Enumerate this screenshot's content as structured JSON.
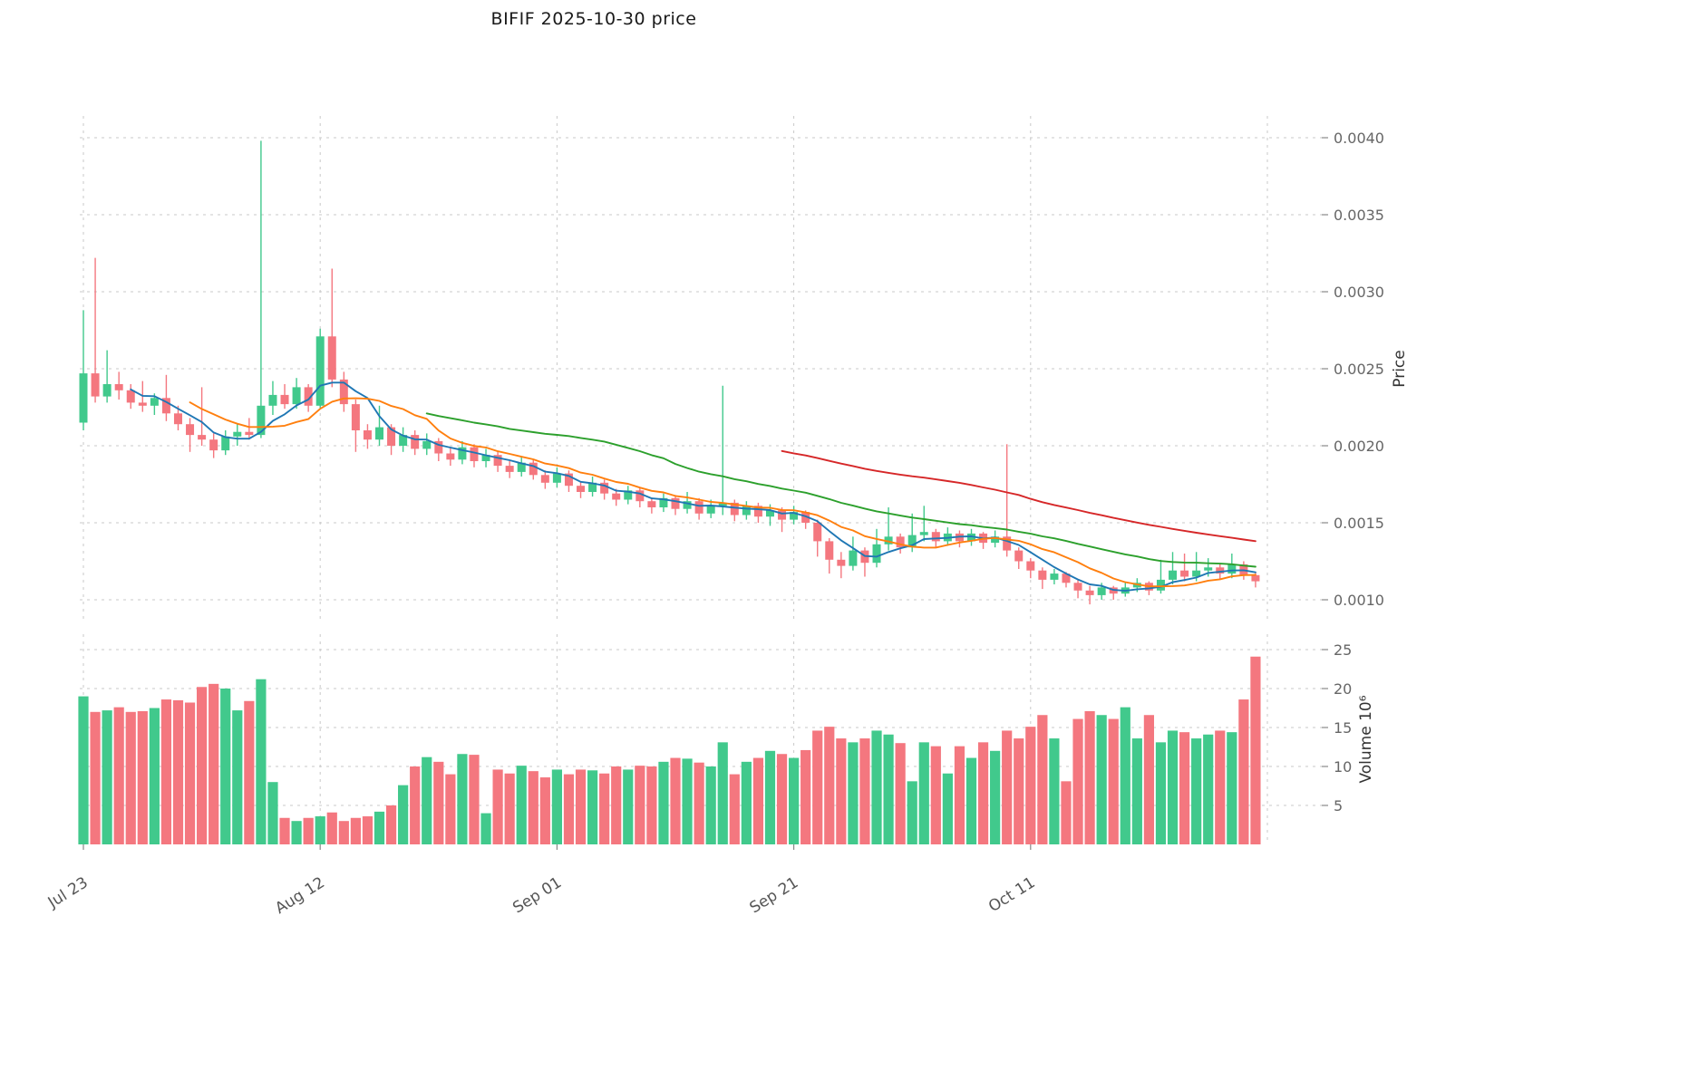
{
  "chart_data": {
    "type": "candlestick",
    "title": "BIFIF  2025-10-30  price",
    "start_date": "2025-07-23",
    "end_date": "2025-10-30",
    "price_axis": {
      "label": "Price",
      "ticks": [
        0.001,
        0.0015,
        0.002,
        0.0025,
        0.003,
        0.0035,
        0.004
      ]
    },
    "volume_axis": {
      "label": "Volume  10⁶",
      "ticks": [
        5,
        10,
        15,
        20,
        25
      ]
    },
    "x_tick_labels": [
      "Jul 23",
      "Aug 12",
      "Sep 01",
      "Sep 21",
      "Oct 11"
    ],
    "x_tick_indices": [
      0,
      20,
      40,
      60,
      80
    ],
    "x_grid_extra_indices": [
      100
    ],
    "grid": true,
    "legend": "none",
    "colors": {
      "up": "#41c98c",
      "down": "#f4777f",
      "grid": "#c9c9c9",
      "tick_text": "#666666",
      "axis_label_text": "#333333"
    },
    "moving_averages": [
      {
        "name": "MA5",
        "window": 5,
        "color": "#1f77b4"
      },
      {
        "name": "MA10",
        "window": 10,
        "color": "#ff7f0e"
      },
      {
        "name": "MA30",
        "window": 30,
        "color": "#2ca02c"
      },
      {
        "name": "MA60",
        "window": 60,
        "color": "#d62728"
      }
    ],
    "candles": {
      "open": [
        0.00215,
        0.00247,
        0.00232,
        0.0024,
        0.00236,
        0.00228,
        0.00226,
        0.00231,
        0.00221,
        0.00214,
        0.00207,
        0.00204,
        0.00197,
        0.00206,
        0.00209,
        0.00207,
        0.00226,
        0.00233,
        0.00227,
        0.00238,
        0.00226,
        0.00271,
        0.00243,
        0.00227,
        0.0021,
        0.00204,
        0.00212,
        0.002,
        0.00207,
        0.00198,
        0.00203,
        0.00195,
        0.00191,
        0.00199,
        0.0019,
        0.00194,
        0.00187,
        0.00183,
        0.00189,
        0.00181,
        0.00176,
        0.00182,
        0.00174,
        0.0017,
        0.00176,
        0.00169,
        0.00165,
        0.00171,
        0.00164,
        0.0016,
        0.00166,
        0.00159,
        0.00164,
        0.00156,
        0.00161,
        0.00163,
        0.00155,
        0.00161,
        0.00154,
        0.00158,
        0.00152,
        0.00157,
        0.0015,
        0.00138,
        0.00126,
        0.00122,
        0.00132,
        0.00124,
        0.00136,
        0.00141,
        0.00134,
        0.00142,
        0.00144,
        0.00138,
        0.00143,
        0.00138,
        0.00143,
        0.00137,
        0.00141,
        0.00132,
        0.00125,
        0.00119,
        0.00113,
        0.00117,
        0.00111,
        0.00106,
        0.00103,
        0.00108,
        0.00104,
        0.00108,
        0.00111,
        0.00106,
        0.00113,
        0.00119,
        0.00115,
        0.00119,
        0.00121,
        0.00117,
        0.00123,
        0.00116
      ],
      "high": [
        0.00288,
        0.00322,
        0.00262,
        0.00248,
        0.0024,
        0.00242,
        0.00234,
        0.00246,
        0.00226,
        0.00218,
        0.00238,
        0.00208,
        0.0021,
        0.00214,
        0.00218,
        0.00398,
        0.00242,
        0.0024,
        0.00244,
        0.0024,
        0.00276,
        0.00315,
        0.00248,
        0.0023,
        0.00214,
        0.00226,
        0.00214,
        0.00212,
        0.0021,
        0.00208,
        0.00205,
        0.00199,
        0.00203,
        0.00201,
        0.00198,
        0.00196,
        0.0019,
        0.00193,
        0.00191,
        0.00184,
        0.00186,
        0.00184,
        0.00177,
        0.0018,
        0.00178,
        0.00172,
        0.00174,
        0.00173,
        0.00166,
        0.00169,
        0.00168,
        0.0017,
        0.00166,
        0.00165,
        0.00239,
        0.00165,
        0.00164,
        0.00163,
        0.00162,
        0.0016,
        0.00161,
        0.00158,
        0.00152,
        0.0014,
        0.00131,
        0.00141,
        0.00134,
        0.00146,
        0.0016,
        0.00143,
        0.00156,
        0.00161,
        0.00146,
        0.00147,
        0.00145,
        0.00146,
        0.00144,
        0.00145,
        0.00201,
        0.00134,
        0.00127,
        0.00121,
        0.0012,
        0.00118,
        0.00113,
        0.00109,
        0.00111,
        0.00109,
        0.00111,
        0.00114,
        0.00112,
        0.00126,
        0.00131,
        0.0013,
        0.00131,
        0.00127,
        0.00123,
        0.0013,
        0.00125,
        0.00118
      ],
      "low": [
        0.0021,
        0.00228,
        0.00228,
        0.0023,
        0.00224,
        0.00222,
        0.0022,
        0.00216,
        0.0021,
        0.00196,
        0.002,
        0.00192,
        0.00194,
        0.002,
        0.00204,
        0.00205,
        0.0022,
        0.00224,
        0.00224,
        0.00222,
        0.00224,
        0.00238,
        0.00222,
        0.00196,
        0.00198,
        0.002,
        0.00194,
        0.00196,
        0.00194,
        0.00194,
        0.0019,
        0.00187,
        0.00188,
        0.00186,
        0.00186,
        0.00183,
        0.00179,
        0.0018,
        0.00178,
        0.00172,
        0.00173,
        0.0017,
        0.00166,
        0.00167,
        0.00165,
        0.00161,
        0.00162,
        0.0016,
        0.00156,
        0.00157,
        0.00155,
        0.00156,
        0.00152,
        0.00153,
        0.00155,
        0.00151,
        0.00152,
        0.0015,
        0.00148,
        0.00144,
        0.00149,
        0.00146,
        0.00128,
        0.00117,
        0.00114,
        0.00119,
        0.00115,
        0.00121,
        0.00132,
        0.0013,
        0.00131,
        0.00138,
        0.00134,
        0.00135,
        0.00134,
        0.00135,
        0.00133,
        0.00134,
        0.00128,
        0.0012,
        0.00114,
        0.00107,
        0.0011,
        0.00108,
        0.00101,
        0.00097,
        0.001,
        0.001,
        0.00102,
        0.00105,
        0.00103,
        0.00104,
        0.0011,
        0.00112,
        0.00112,
        0.00115,
        0.00113,
        0.00114,
        0.00113,
        0.00108
      ],
      "close": [
        0.00247,
        0.00232,
        0.0024,
        0.00236,
        0.00228,
        0.00226,
        0.00231,
        0.00221,
        0.00214,
        0.00207,
        0.00204,
        0.00197,
        0.00206,
        0.00209,
        0.00207,
        0.00226,
        0.00233,
        0.00227,
        0.00238,
        0.00226,
        0.00271,
        0.00243,
        0.00227,
        0.0021,
        0.00204,
        0.00212,
        0.002,
        0.00207,
        0.00198,
        0.00203,
        0.00195,
        0.00191,
        0.00199,
        0.0019,
        0.00194,
        0.00187,
        0.00183,
        0.00189,
        0.00181,
        0.00176,
        0.00182,
        0.00174,
        0.0017,
        0.00176,
        0.00169,
        0.00165,
        0.00171,
        0.00164,
        0.0016,
        0.00166,
        0.00159,
        0.00164,
        0.00156,
        0.00161,
        0.00163,
        0.00155,
        0.00161,
        0.00154,
        0.00158,
        0.00152,
        0.00157,
        0.0015,
        0.00138,
        0.00126,
        0.00122,
        0.00132,
        0.00124,
        0.00136,
        0.00141,
        0.00134,
        0.00142,
        0.00144,
        0.00138,
        0.00143,
        0.00138,
        0.00143,
        0.00137,
        0.00141,
        0.00132,
        0.00125,
        0.00119,
        0.00113,
        0.00117,
        0.00111,
        0.00106,
        0.00103,
        0.00108,
        0.00104,
        0.00108,
        0.00111,
        0.00106,
        0.00113,
        0.00119,
        0.00115,
        0.00119,
        0.00121,
        0.00117,
        0.00123,
        0.00116,
        0.00112
      ],
      "volume_millions": [
        19.0,
        17.0,
        17.2,
        17.6,
        17.0,
        17.1,
        17.5,
        18.6,
        18.5,
        18.2,
        20.2,
        20.6,
        20.0,
        17.2,
        18.4,
        21.2,
        8.0,
        3.4,
        3.0,
        3.4,
        3.6,
        4.1,
        3.0,
        3.4,
        3.6,
        4.2,
        5.0,
        7.6,
        10.0,
        11.2,
        10.6,
        9.0,
        11.6,
        11.5,
        4.0,
        9.6,
        9.1,
        10.1,
        9.4,
        8.6,
        9.6,
        9.0,
        9.6,
        9.5,
        9.1,
        10.0,
        9.6,
        10.1,
        10.0,
        10.6,
        11.1,
        11.0,
        10.5,
        10.0,
        13.1,
        9.0,
        10.6,
        11.1,
        12.0,
        11.6,
        11.1,
        12.1,
        14.6,
        15.1,
        13.6,
        13.1,
        13.6,
        14.6,
        14.1,
        13.0,
        8.1,
        13.1,
        12.6,
        9.1,
        12.6,
        11.1,
        13.1,
        12.0,
        14.6,
        13.6,
        15.1,
        16.6,
        13.6,
        8.1,
        16.1,
        17.1,
        16.6,
        16.1,
        17.6,
        13.6,
        16.6,
        13.1,
        14.6,
        14.4,
        13.6,
        14.1,
        14.6,
        14.4,
        18.6,
        24.1
      ]
    }
  }
}
